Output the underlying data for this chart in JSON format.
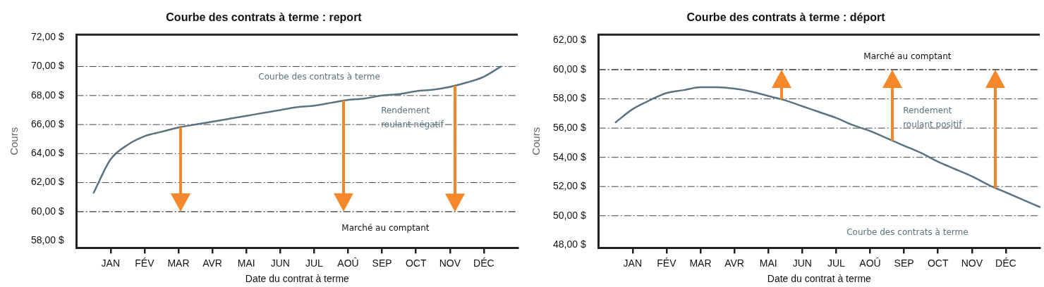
{
  "chart_data": [
    {
      "type": "line",
      "title": "Courbe des contrats à terme : report",
      "xlabel": "Date du contrat à terme",
      "ylabel": "Cours",
      "categories": [
        null,
        null,
        "JAN",
        null,
        "FÉV",
        null,
        "MAR",
        null,
        "AVR",
        null,
        "MAI",
        null,
        "JUN",
        null,
        "JUL",
        null,
        "AOÛ",
        null,
        "SEP",
        null,
        "OCT",
        null,
        "NOV",
        null,
        "DÉC",
        null,
        null
      ],
      "ylim": [
        57.5,
        72.2
      ],
      "yticks": [
        {
          "value": 58,
          "label": "58,00 $"
        },
        {
          "value": 60,
          "label": "60,00 $"
        },
        {
          "value": 62,
          "label": "62,00 $"
        },
        {
          "value": 64,
          "label": "64,00 $"
        },
        {
          "value": 66,
          "label": "66,00 $"
        },
        {
          "value": 68,
          "label": "68,00 $"
        },
        {
          "value": 70,
          "label": "70,00 $"
        },
        {
          "value": 72,
          "label": "72,00 $"
        }
      ],
      "series": [
        {
          "name": "Courbe des contrats à terme",
          "color": "#5a7282",
          "values": [
            null,
            61.3,
            63.6,
            64.6,
            65.2,
            65.5,
            65.8,
            66.0,
            66.2,
            66.4,
            66.6,
            66.8,
            67.0,
            67.2,
            67.3,
            67.5,
            67.7,
            67.8,
            68.0,
            68.1,
            68.3,
            68.4,
            68.6,
            68.9,
            69.3,
            70.0,
            null
          ]
        }
      ],
      "ref_lines": [
        {
          "axis": "y",
          "value": 60,
          "label": "Marché au comptant",
          "color": "#333333",
          "line_style": "dashed"
        }
      ],
      "annotations": [
        "Rendement roulant négatif"
      ],
      "grid": "y",
      "legend": false,
      "marker": "none",
      "line_style": "solid"
    },
    {
      "type": "line",
      "title": "Courbe des contrats à terme : déport",
      "xlabel": "Date du contrat à terme",
      "ylabel": "Cours",
      "categories": [
        null,
        null,
        "JAN",
        null,
        "FÉV",
        null,
        "MAR",
        null,
        "AVR",
        null,
        "MAI",
        null,
        "JUN",
        null,
        "JUL",
        null,
        "AOÛ",
        null,
        "SEP",
        null,
        "OCT",
        null,
        "NOV",
        null,
        "DÉC",
        null,
        null
      ],
      "ylim": [
        47.8,
        62.4
      ],
      "yticks": [
        {
          "value": 48,
          "label": "48,00 $"
        },
        {
          "value": 50,
          "label": "50,00 $"
        },
        {
          "value": 52,
          "label": "52,00 $"
        },
        {
          "value": 54,
          "label": "54,00 $"
        },
        {
          "value": 56,
          "label": "56,00 $"
        },
        {
          "value": 58,
          "label": "58,00 $"
        },
        {
          "value": 60,
          "label": "60,00 $"
        },
        {
          "value": 62,
          "label": "62,00 $"
        }
      ],
      "series": [
        {
          "name": "Courbe des contrats à terme",
          "color": "#5a7282",
          "values": [
            null,
            56.4,
            57.3,
            57.9,
            58.4,
            58.6,
            58.8,
            58.8,
            58.7,
            58.5,
            58.2,
            57.9,
            57.5,
            57.1,
            56.7,
            56.2,
            55.8,
            55.3,
            54.8,
            54.3,
            53.7,
            53.2,
            52.7,
            52.1,
            51.6,
            51.1,
            50.6
          ]
        }
      ],
      "ref_lines": [
        {
          "axis": "y",
          "value": 60,
          "label": "Marché au comptant",
          "color": "#333333",
          "line_style": "dashed"
        }
      ],
      "annotations": [
        "Rendement roulant positif"
      ],
      "grid": "y",
      "legend": false,
      "marker": "none",
      "line_style": "solid"
    }
  ]
}
